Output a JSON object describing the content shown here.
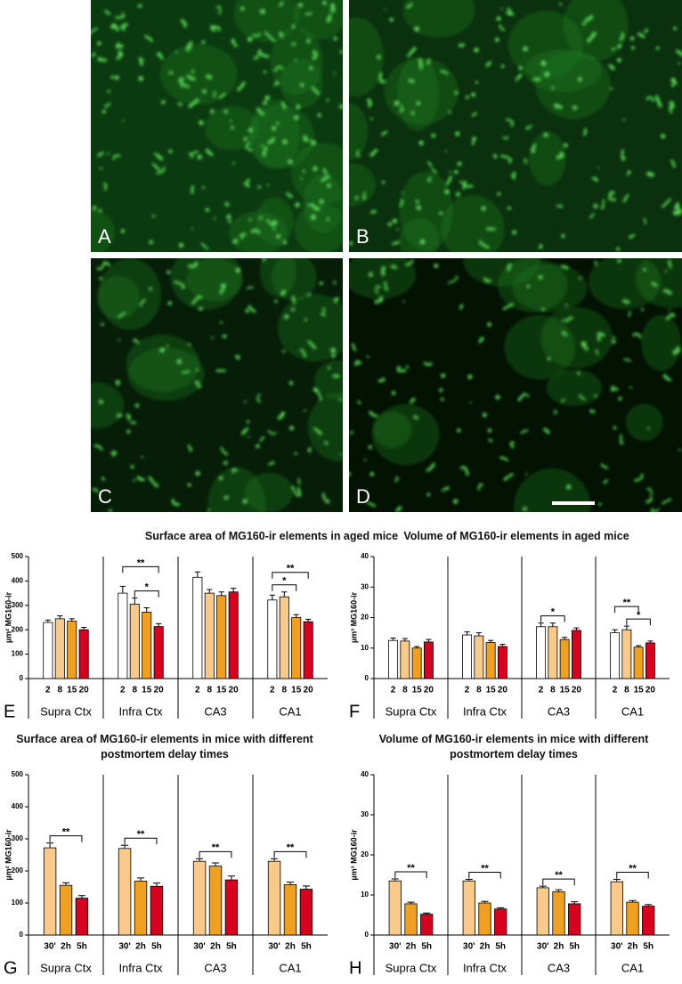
{
  "micrographs": {
    "labels": [
      "A",
      "B",
      "C",
      "D"
    ]
  },
  "chart_data": [
    {
      "type": "bar",
      "panel": "E",
      "title": "Surface area of MG160-ir elements in aged mice",
      "y_label": "µm² MG160-ir",
      "groups": [
        "Supra Ctx",
        "Infra Ctx",
        "CA3",
        "CA1"
      ],
      "series": [
        {
          "name": "2",
          "color": "#ffffff",
          "values": [
            230,
            350,
            415,
            322
          ],
          "errors": [
            10,
            28,
            22,
            20
          ]
        },
        {
          "name": "8",
          "color": "#f9c98a",
          "values": [
            245,
            305,
            350,
            335
          ],
          "errors": [
            12,
            25,
            15,
            20
          ]
        },
        {
          "name": "15",
          "color": "#f0a020",
          "values": [
            235,
            272,
            340,
            250
          ],
          "errors": [
            10,
            18,
            15,
            12
          ]
        },
        {
          "name": "20",
          "color": "#d7001e",
          "values": [
            200,
            213,
            355,
            233
          ],
          "errors": [
            10,
            12,
            15,
            10
          ]
        }
      ],
      "ylim": [
        0,
        500
      ],
      "yticks": [
        0,
        100,
        200,
        300,
        400,
        500
      ],
      "annotations": [
        {
          "group": "Infra Ctx",
          "from": "8",
          "to": "20",
          "text": "*"
        },
        {
          "group": "Infra Ctx",
          "from": "2",
          "to": "20",
          "text": "**"
        },
        {
          "group": "CA1",
          "from": "2",
          "to": "15",
          "text": "*"
        },
        {
          "group": "CA1",
          "from": "2",
          "to": "20",
          "text": "**"
        }
      ]
    },
    {
      "type": "bar",
      "panel": "F",
      "title": "Volume of MG160-ir elements in aged mice",
      "y_label": "µm³ MG160-ir",
      "groups": [
        "Supra Ctx",
        "Infra Ctx",
        "CA3",
        "CA1"
      ],
      "series": [
        {
          "name": "2",
          "color": "#ffffff",
          "values": [
            12.5,
            14.3,
            17,
            15
          ],
          "errors": [
            0.8,
            1,
            1.2,
            1
          ]
        },
        {
          "name": "8",
          "color": "#f9c98a",
          "values": [
            12.3,
            14,
            17,
            16
          ],
          "errors": [
            0.8,
            1,
            1.2,
            1.2
          ]
        },
        {
          "name": "15",
          "color": "#f0a020",
          "values": [
            10,
            11.8,
            12.8,
            10.3
          ],
          "errors": [
            0.5,
            0.7,
            0.7,
            0.5
          ]
        },
        {
          "name": "20",
          "color": "#d7001e",
          "values": [
            12,
            10.5,
            15.8,
            11.7
          ],
          "errors": [
            0.8,
            0.7,
            0.8,
            0.6
          ]
        }
      ],
      "ylim": [
        0,
        40
      ],
      "yticks": [
        0,
        10,
        20,
        30,
        40
      ],
      "annotations": [
        {
          "group": "CA3",
          "from": "2",
          "to": "15",
          "text": "*"
        },
        {
          "group": "CA1",
          "from": "8",
          "to": "20",
          "text": "*"
        },
        {
          "group": "CA1",
          "from": "2",
          "to": "15",
          "text": "**"
        }
      ]
    },
    {
      "type": "bar",
      "panel": "G",
      "title": "Surface area of MG160-ir elements in mice with different postmortem delay times",
      "y_label": "µm² MG160-ir",
      "groups": [
        "Supra Ctx",
        "Infra Ctx",
        "CA3",
        "CA1"
      ],
      "series": [
        {
          "name": "30'",
          "color": "#f9c98a",
          "values": [
            272,
            270,
            230,
            230
          ],
          "errors": [
            15,
            10,
            8,
            8
          ]
        },
        {
          "name": "2h",
          "color": "#f0a020",
          "values": [
            155,
            168,
            215,
            157
          ],
          "errors": [
            8,
            10,
            10,
            8
          ]
        },
        {
          "name": "5h",
          "color": "#d7001e",
          "values": [
            115,
            152,
            172,
            143
          ],
          "errors": [
            8,
            10,
            12,
            10
          ]
        }
      ],
      "ylim": [
        0,
        500
      ],
      "yticks": [
        0,
        100,
        200,
        300,
        400,
        500
      ],
      "annotations": [
        {
          "group": "Supra Ctx",
          "from": "30'",
          "to": "5h",
          "text": "**"
        },
        {
          "group": "Infra Ctx",
          "from": "30'",
          "to": "5h",
          "text": "**"
        },
        {
          "group": "CA3",
          "from": "30'",
          "to": "5h",
          "text": "**"
        },
        {
          "group": "CA1",
          "from": "30'",
          "to": "5h",
          "text": "**"
        }
      ]
    },
    {
      "type": "bar",
      "panel": "H",
      "title": "Volume of MG160-ir elements in mice with different postmortem delay times",
      "y_label": "µm³ MG160-ir",
      "groups": [
        "Supra Ctx",
        "Infra Ctx",
        "CA3",
        "CA1"
      ],
      "series": [
        {
          "name": "30'",
          "color": "#f9c98a",
          "values": [
            13.5,
            13.5,
            11.8,
            13.3
          ],
          "errors": [
            0.5,
            0.4,
            0.4,
            0.6
          ]
        },
        {
          "name": "2h",
          "color": "#f0a020",
          "values": [
            7.8,
            8,
            10.8,
            8.2
          ],
          "errors": [
            0.4,
            0.4,
            0.5,
            0.4
          ]
        },
        {
          "name": "5h",
          "color": "#d7001e",
          "values": [
            5.2,
            6.5,
            7.8,
            7.2
          ],
          "errors": [
            0.3,
            0.3,
            0.5,
            0.4
          ]
        }
      ],
      "ylim": [
        0,
        40
      ],
      "yticks": [
        0,
        10,
        20,
        30,
        40
      ],
      "annotations": [
        {
          "group": "Supra Ctx",
          "from": "30'",
          "to": "5h",
          "text": "**"
        },
        {
          "group": "Infra Ctx",
          "from": "30'",
          "to": "5h",
          "text": "**"
        },
        {
          "group": "CA3",
          "from": "30'",
          "to": "5h",
          "text": "**"
        },
        {
          "group": "CA1",
          "from": "30'",
          "to": "5h",
          "text": "**"
        }
      ]
    }
  ]
}
